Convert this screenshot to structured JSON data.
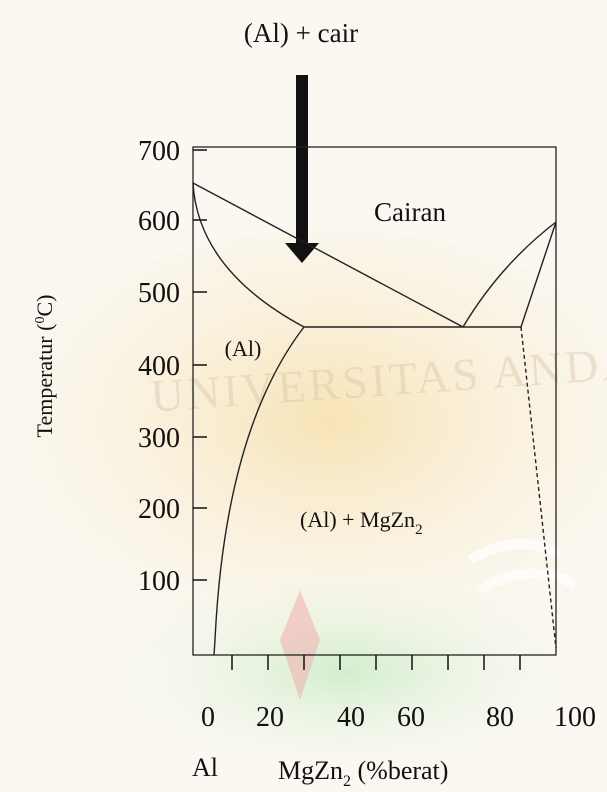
{
  "annotation_top": "(Al) + cair",
  "y_axis": {
    "title_prefix": "Temperatur (",
    "title_sup": "0",
    "title_suffix": "C)",
    "ticks": [
      "700",
      "600",
      "500",
      "400",
      "300",
      "200",
      "100"
    ]
  },
  "x_axis": {
    "ticks": [
      "0",
      "20",
      "40",
      "60",
      "80",
      "100"
    ],
    "left_label": "Al",
    "title_prefix": "MgZn",
    "title_sub": "2",
    "title_suffix": " (%berat)"
  },
  "regions": {
    "liquid": "Cairan",
    "alpha": "(Al)",
    "two_phase_prefix": "(Al) + MgZn",
    "two_phase_sub": "2"
  },
  "watermark": "UNIVERSITAS ANDALAS",
  "colors": {
    "background": "#fbf8f2",
    "watermark_orange": "#f3cf86",
    "watermark_green": "#c8ecc4",
    "watermark_red": "#f2a7a7",
    "ink": "#111111"
  }
}
